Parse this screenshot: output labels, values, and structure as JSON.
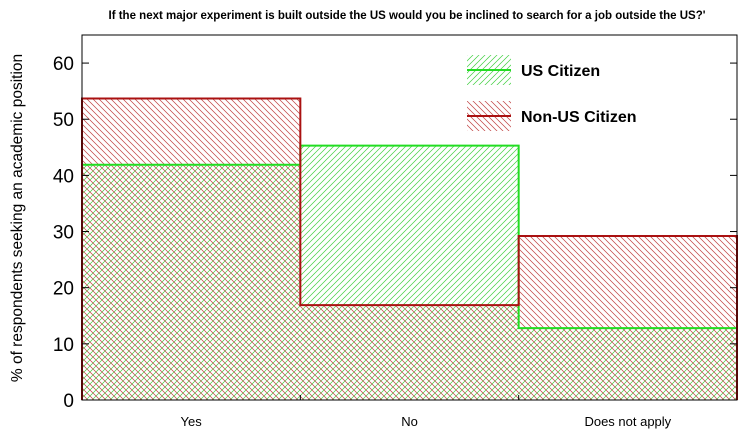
{
  "chart_data": {
    "type": "bar",
    "title": "If the next major experiment is built outside the US would you be inclined to search for a job outside the US?'",
    "xlabel": "",
    "ylabel": "% of respondents seeking an academic position",
    "categories": [
      "Yes",
      "No",
      "Does not apply"
    ],
    "series": [
      {
        "name": "US Citizen",
        "values": [
          41.9,
          45.3,
          12.8
        ],
        "color": "#22dd22"
      },
      {
        "name": "Non-US Citizen",
        "values": [
          53.7,
          16.9,
          29.2
        ],
        "color": "#aa1111"
      }
    ],
    "ylim": [
      0,
      65
    ],
    "yticks": [
      0,
      10,
      20,
      30,
      40,
      50,
      60
    ],
    "legend_position": "top-right",
    "grid": false
  }
}
